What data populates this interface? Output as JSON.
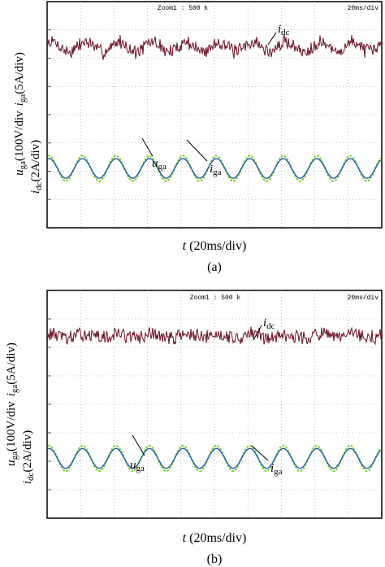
{
  "colors": {
    "idc": "#6b1020",
    "uga": "#7fd13b",
    "iga": "#1f5fa8",
    "grid": "#9a9a9a",
    "frame": "#000000"
  },
  "chart_data": [
    {
      "type": "line",
      "panel_label": "(a)",
      "header_center": "Zoom1 : 500 k",
      "header_right": "20ms/div",
      "xlabel_var": "t",
      "xlabel_unit": " (20ms/div)",
      "ylabel_line1": {
        "var": "u",
        "sub": "ga",
        "rest1": "(100V/div",
        "var2": "i",
        "sub2": "ga",
        "rest2": "(5A/div)"
      },
      "ylabel_line2": {
        "var": "i",
        "sub": "dc",
        "rest": "(2A/div)"
      },
      "x_divisions": 10,
      "y_divisions": 8,
      "grid": true,
      "fundamental_period_ms": 20,
      "periods_shown": 10,
      "series": [
        {
          "name_var": "i",
          "name_sub": "dc",
          "key": "idc",
          "dc_level_div": 6.4,
          "ripple_pp_div": 0.35,
          "ripple_period_ms": 20,
          "noise": "high"
        },
        {
          "name_var": "u",
          "name_sub": "ga",
          "key": "uga",
          "offset_div": 2.1,
          "amplitude_div": 0.45,
          "period_ms": 20
        },
        {
          "name_var": "i",
          "name_sub": "ga",
          "key": "iga",
          "offset_div": 2.1,
          "amplitude_div": 0.35,
          "period_ms": 20
        }
      ]
    },
    {
      "type": "line",
      "panel_label": "(b)",
      "header_center": "Zoom1 : 500 k",
      "header_right": "20ms/div",
      "xlabel_var": "t",
      "xlabel_unit": " (20ms/div)",
      "ylabel_line1": {
        "var": "u",
        "sub": "ga",
        "rest1": "(100V/div",
        "var2": "i",
        "sub2": "ga",
        "rest2": "(5A/div)"
      },
      "ylabel_line2": {
        "var": "i",
        "sub": "dc",
        "rest": "(2A/div)"
      },
      "x_divisions": 10,
      "y_divisions": 8,
      "grid": true,
      "fundamental_period_ms": 20,
      "periods_shown": 10,
      "series": [
        {
          "name_var": "i",
          "name_sub": "dc",
          "key": "idc",
          "dc_level_div": 6.4,
          "ripple_pp_div": 0.15,
          "ripple_period_ms": 20,
          "noise": "high"
        },
        {
          "name_var": "u",
          "name_sub": "ga",
          "key": "uga",
          "offset_div": 2.1,
          "amplitude_div": 0.45,
          "period_ms": 20
        },
        {
          "name_var": "i",
          "name_sub": "ga",
          "key": "iga",
          "offset_div": 2.1,
          "amplitude_div": 0.35,
          "period_ms": 20
        }
      ]
    }
  ]
}
